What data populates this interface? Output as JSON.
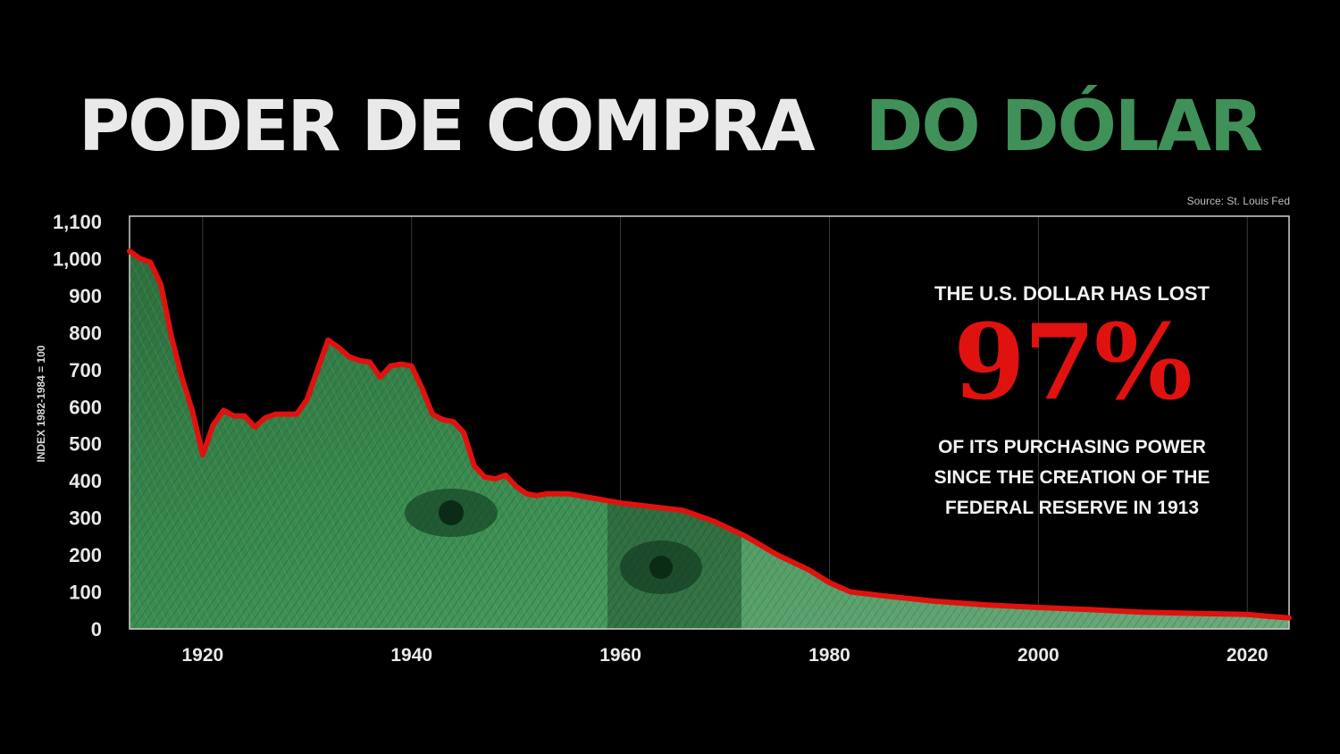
{
  "title": {
    "part1": "PODER DE COMPRA",
    "part2": "DO DÓLAR"
  },
  "source": "Source: St. Louis Fed",
  "annotation": {
    "line1": "THE U.S. DOLLAR HAS LOST",
    "big": "97%",
    "line2": "OF ITS PURCHASING POWER",
    "line3": "SINCE THE CREATION OF THE",
    "line4": "FEDERAL RESERVE IN 1913"
  },
  "colors": {
    "background": "#000000",
    "title_white": "#e9e9e9",
    "title_green": "#3f9159",
    "line_red": "#e0120f",
    "banknote_green": "#2f7d45"
  },
  "chart_data": {
    "type": "area",
    "title": "",
    "xlabel": "",
    "ylabel": "INDEX 1982-1984 = 100",
    "xlim": [
      1913,
      2024
    ],
    "ylim": [
      0,
      1100
    ],
    "xticks": [
      "1920",
      "1940",
      "1960",
      "1980",
      "2000",
      "2020"
    ],
    "yticks": [
      "0",
      "100",
      "200",
      "300",
      "400",
      "500",
      "600",
      "700",
      "800",
      "900",
      "1,000",
      "1,100"
    ],
    "grid": "vertical",
    "fill": "banknote illustration",
    "series": [
      {
        "x": [
          1913,
          1914,
          1915,
          1916,
          1917,
          1918,
          1919,
          1920,
          1921,
          1922,
          1923,
          1924,
          1925,
          1926,
          1927,
          1928,
          1929,
          1930,
          1931,
          1932,
          1933,
          1934,
          1935,
          1936,
          1937,
          1938,
          1939,
          1940,
          1941,
          1942,
          1943,
          1944,
          1945,
          1946,
          1947,
          1948,
          1949,
          1950,
          1951,
          1952,
          1953,
          1955,
          1957,
          1960,
          1963,
          1966,
          1969,
          1972,
          1975,
          1978,
          1980,
          1982,
          1985,
          1990,
          1995,
          2000,
          2005,
          2010,
          2015,
          2020,
          2022,
          2024
        ],
        "values": [
          1020,
          1000,
          990,
          930,
          790,
          680,
          590,
          470,
          550,
          590,
          575,
          575,
          545,
          570,
          580,
          580,
          580,
          620,
          700,
          780,
          760,
          735,
          725,
          720,
          680,
          710,
          715,
          710,
          650,
          580,
          565,
          560,
          530,
          440,
          410,
          405,
          415,
          385,
          365,
          360,
          365,
          365,
          355,
          340,
          330,
          320,
          290,
          250,
          200,
          160,
          125,
          100,
          90,
          75,
          65,
          58,
          52,
          45,
          42,
          39,
          34,
          30
        ]
      }
    ]
  }
}
